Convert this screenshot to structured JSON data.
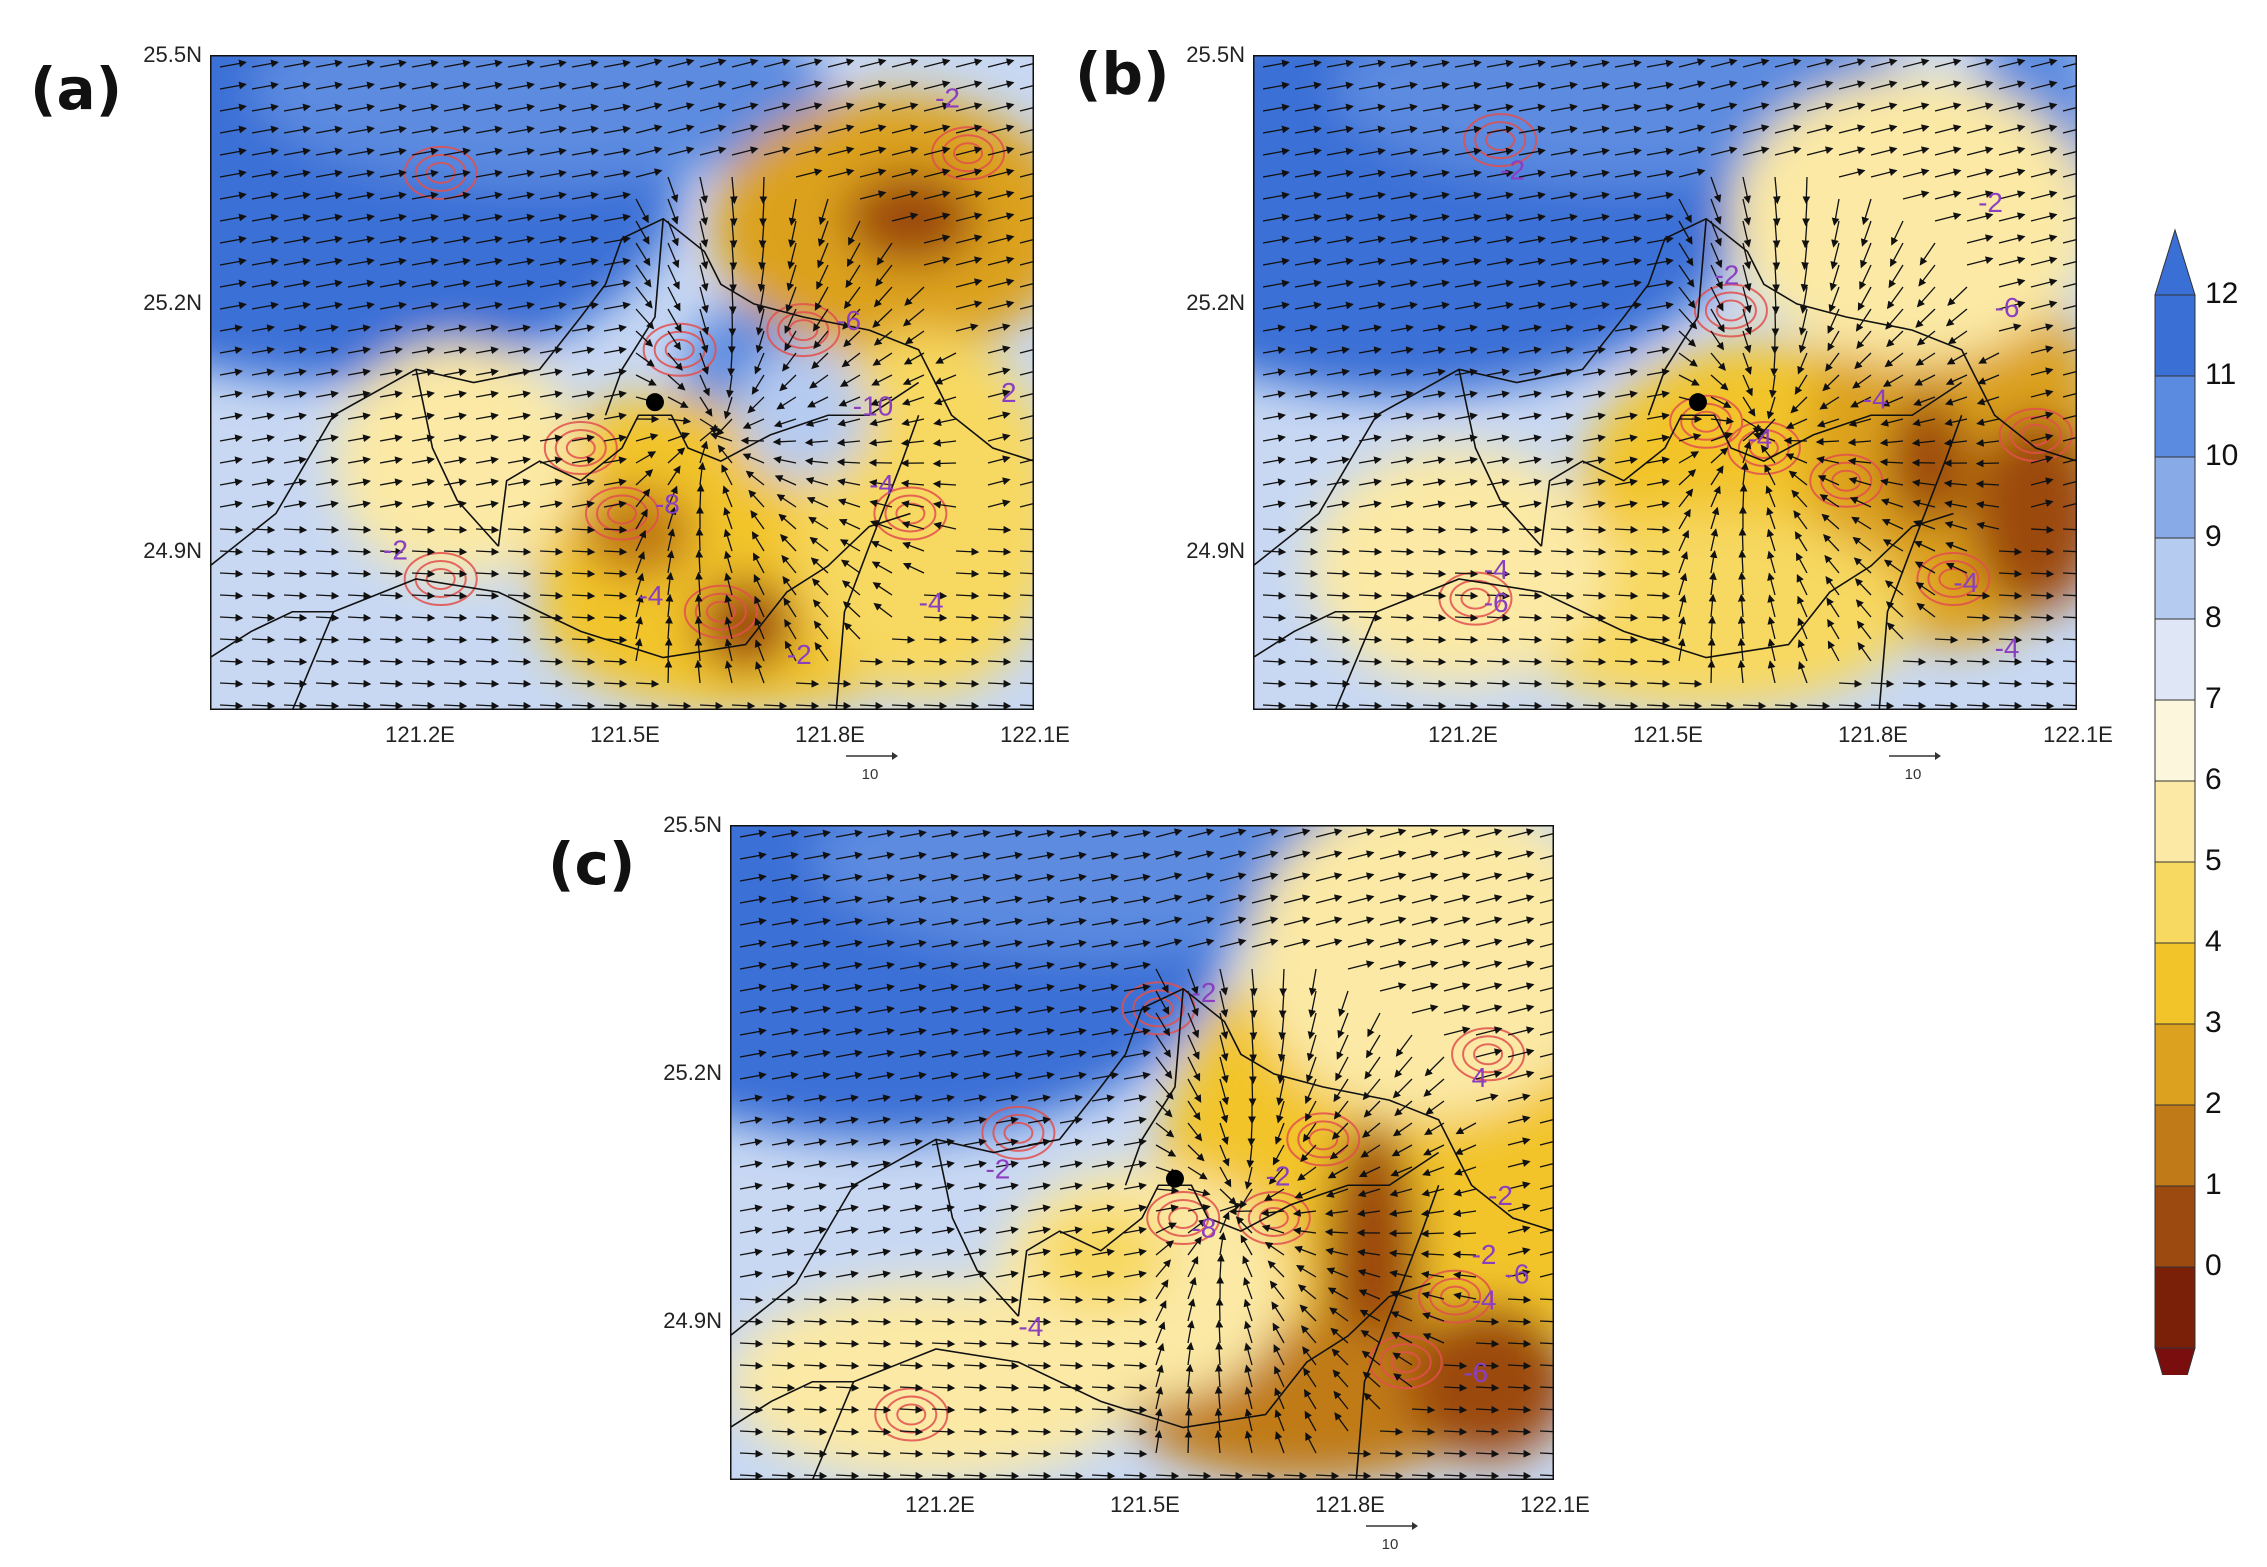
{
  "panels": [
    {
      "id": "a",
      "letter": "(a)",
      "contour_labels": [
        "-2",
        "-6",
        "-10",
        "2",
        "-8",
        "-4",
        "-2",
        "-4",
        "-2",
        "-4"
      ],
      "dot": true
    },
    {
      "id": "b",
      "letter": "(b)",
      "contour_labels": [
        "-2",
        "-2",
        "-2",
        "-6",
        "-4",
        "-4",
        "-4",
        "-6",
        "-4",
        "-4"
      ],
      "dot": true
    },
    {
      "id": "c",
      "letter": "(c)",
      "contour_labels": [
        "-2",
        "-2",
        "-2",
        "4",
        "-2",
        "-8",
        "-2",
        "-6",
        "-4",
        "-4",
        "-6"
      ],
      "dot": true
    }
  ],
  "lat_ticks": [
    "25.5N",
    "25.2N",
    "24.9N"
  ],
  "lon_ticks": [
    "121.2E",
    "121.5E",
    "121.8E",
    "122.1E"
  ],
  "ref_vector_label": "10",
  "colorbar": {
    "labels": [
      "12",
      "11",
      "10",
      "9",
      "8",
      "7",
      "6",
      "5",
      "4",
      "3",
      "2",
      "1",
      "0"
    ],
    "colors": [
      "#3a6fd6",
      "#5b8be0",
      "#88abe8",
      "#b5cbf0",
      "#dfe7f7",
      "#fbf6dc",
      "#fbe9a5",
      "#f7d860",
      "#f2c42a",
      "#dca11f",
      "#c07a18",
      "#9c4a10",
      "#7a1f08"
    ],
    "top_color": "#3a6fd6",
    "bottom_color": "#7a0d0d"
  }
}
